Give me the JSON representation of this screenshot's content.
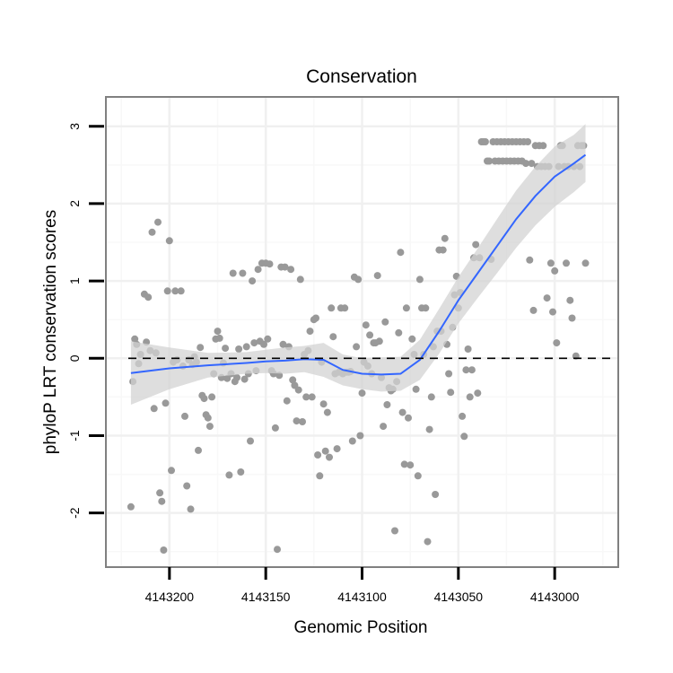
{
  "chart_data": {
    "type": "scatter",
    "title": "Conservation",
    "xlabel": "Genomic Position",
    "ylabel": "phyloP LRT conservation scores",
    "x_reversed": true,
    "xlim": [
      4143233,
      4142967
    ],
    "ylim": [
      -2.7,
      3.38
    ],
    "x_ticks": [
      4143200,
      4143150,
      4143100,
      4143050,
      4143000
    ],
    "x_tick_labels": [
      "4143200",
      "4143150",
      "4143100",
      "4143050",
      "4143000"
    ],
    "y_ticks": [
      -2,
      -1,
      0,
      1,
      2,
      3
    ],
    "y_tick_labels": [
      "-2",
      "-1",
      "0",
      "1",
      "2",
      "3"
    ],
    "reference_line": {
      "y": 0,
      "style": "dashed"
    },
    "colors": {
      "points": "#999999",
      "smooth_line": "#3366FF",
      "ribbon": "#d3d3d3",
      "panel_border": "#808080",
      "grid_major": "#f0f0f0",
      "grid_minor": "#f8f8f8",
      "ref_line": "#000000"
    },
    "points": [
      {
        "x": 4143220,
        "y": -1.92
      },
      {
        "x": 4143219,
        "y": -0.3
      },
      {
        "x": 4143218,
        "y": 0.25
      },
      {
        "x": 4143217,
        "y": 0.18
      },
      {
        "x": 4143216,
        "y": -0.07
      },
      {
        "x": 4143215,
        "y": 0.05
      },
      {
        "x": 4143213,
        "y": 0.83
      },
      {
        "x": 4143212,
        "y": 0.21
      },
      {
        "x": 4143211,
        "y": 0.79
      },
      {
        "x": 4143210,
        "y": 0.1
      },
      {
        "x": 4143209,
        "y": 1.63
      },
      {
        "x": 4143208,
        "y": -0.65
      },
      {
        "x": 4143207,
        "y": 0.07
      },
      {
        "x": 4143206,
        "y": 1.76
      },
      {
        "x": 4143205,
        "y": -1.74
      },
      {
        "x": 4143204,
        "y": -1.85
      },
      {
        "x": 4143203,
        "y": -2.48
      },
      {
        "x": 4143202,
        "y": -0.58
      },
      {
        "x": 4143201,
        "y": 0.87
      },
      {
        "x": 4143200,
        "y": 1.52
      },
      {
        "x": 4143199,
        "y": -1.45
      },
      {
        "x": 4143198,
        "y": -0.05
      },
      {
        "x": 4143197,
        "y": 0.87
      },
      {
        "x": 4143196,
        "y": -0.02
      },
      {
        "x": 4143194,
        "y": 0.87
      },
      {
        "x": 4143193,
        "y": -0.1
      },
      {
        "x": 4143192,
        "y": -0.75
      },
      {
        "x": 4143191,
        "y": -1.65
      },
      {
        "x": 4143190,
        "y": -0.02
      },
      {
        "x": 4143189,
        "y": -1.95
      },
      {
        "x": 4143188,
        "y": -0.08
      },
      {
        "x": 4143187,
        "y": 0.02
      },
      {
        "x": 4143186,
        "y": -0.05
      },
      {
        "x": 4143185,
        "y": -1.19
      },
      {
        "x": 4143184,
        "y": 0.14
      },
      {
        "x": 4143183,
        "y": -0.48
      },
      {
        "x": 4143182,
        "y": -0.52
      },
      {
        "x": 4143181,
        "y": -0.73
      },
      {
        "x": 4143180,
        "y": -0.77
      },
      {
        "x": 4143179,
        "y": -0.88
      },
      {
        "x": 4143178,
        "y": -0.5
      },
      {
        "x": 4143177,
        "y": -0.2
      },
      {
        "x": 4143176,
        "y": 0.25
      },
      {
        "x": 4143175,
        "y": 0.35
      },
      {
        "x": 4143174,
        "y": 0.26
      },
      {
        "x": 4143173,
        "y": -0.25
      },
      {
        "x": 4143172,
        "y": -0.06
      },
      {
        "x": 4143171,
        "y": 0.13
      },
      {
        "x": 4143170,
        "y": -0.26
      },
      {
        "x": 4143169,
        "y": -1.51
      },
      {
        "x": 4143168,
        "y": -0.2
      },
      {
        "x": 4143167,
        "y": 1.1
      },
      {
        "x": 4143166,
        "y": -0.3
      },
      {
        "x": 4143165,
        "y": -0.25
      },
      {
        "x": 4143164,
        "y": 0.12
      },
      {
        "x": 4143163,
        "y": -1.47
      },
      {
        "x": 4143162,
        "y": 1.1
      },
      {
        "x": 4143161,
        "y": -0.27
      },
      {
        "x": 4143160,
        "y": 0.15
      },
      {
        "x": 4143159,
        "y": -0.2
      },
      {
        "x": 4143158,
        "y": -1.07
      },
      {
        "x": 4143157,
        "y": 1.0
      },
      {
        "x": 4143156,
        "y": 0.2
      },
      {
        "x": 4143155,
        "y": -0.16
      },
      {
        "x": 4143154,
        "y": 1.15
      },
      {
        "x": 4143153,
        "y": 0.22
      },
      {
        "x": 4143152,
        "y": 1.23
      },
      {
        "x": 4143151,
        "y": 0.18
      },
      {
        "x": 4143150,
        "y": 1.23
      },
      {
        "x": 4143149,
        "y": 0.25
      },
      {
        "x": 4143148,
        "y": 1.22
      },
      {
        "x": 4143147,
        "y": -0.16
      },
      {
        "x": 4143146,
        "y": -0.2
      },
      {
        "x": 4143145,
        "y": -0.9
      },
      {
        "x": 4143144,
        "y": -2.47
      },
      {
        "x": 4143143,
        "y": -0.22
      },
      {
        "x": 4143142,
        "y": 1.18
      },
      {
        "x": 4143141,
        "y": 0.18
      },
      {
        "x": 4143140,
        "y": 1.18
      },
      {
        "x": 4143139,
        "y": -0.55
      },
      {
        "x": 4143138,
        "y": 0.15
      },
      {
        "x": 4143137,
        "y": 1.15
      },
      {
        "x": 4143136,
        "y": -0.28
      },
      {
        "x": 4143135,
        "y": -0.35
      },
      {
        "x": 4143134,
        "y": -0.81
      },
      {
        "x": 4143133,
        "y": -0.41
      },
      {
        "x": 4143132,
        "y": 1.02
      },
      {
        "x": 4143131,
        "y": -0.82
      },
      {
        "x": 4143130,
        "y": 0.05
      },
      {
        "x": 4143129,
        "y": -0.5
      },
      {
        "x": 4143128,
        "y": 0.1
      },
      {
        "x": 4143127,
        "y": 0.35
      },
      {
        "x": 4143126,
        "y": -0.5
      },
      {
        "x": 4143125,
        "y": 0.5
      },
      {
        "x": 4143124,
        "y": 0.52
      },
      {
        "x": 4143123,
        "y": -1.25
      },
      {
        "x": 4143122,
        "y": -1.52
      },
      {
        "x": 4143121,
        "y": -0.05
      },
      {
        "x": 4143120,
        "y": -0.59
      },
      {
        "x": 4143119,
        "y": -1.2
      },
      {
        "x": 4143118,
        "y": -0.7
      },
      {
        "x": 4143117,
        "y": -1.28
      },
      {
        "x": 4143116,
        "y": 0.65
      },
      {
        "x": 4143115,
        "y": 0.28
      },
      {
        "x": 4143114,
        "y": -0.2
      },
      {
        "x": 4143113,
        "y": -1.17
      },
      {
        "x": 4143112,
        "y": -0.18
      },
      {
        "x": 4143111,
        "y": 0.65
      },
      {
        "x": 4143110,
        "y": -0.2
      },
      {
        "x": 4143109,
        "y": 0.65
      },
      {
        "x": 4143108,
        "y": -0.18
      },
      {
        "x": 4143107,
        "y": -0.18
      },
      {
        "x": 4143106,
        "y": -0.17
      },
      {
        "x": 4143105,
        "y": -1.07
      },
      {
        "x": 4143104,
        "y": 1.05
      },
      {
        "x": 4143103,
        "y": 0.15
      },
      {
        "x": 4143102,
        "y": 1.02
      },
      {
        "x": 4143101,
        "y": -1.0
      },
      {
        "x": 4143100,
        "y": -0.45
      },
      {
        "x": 4143099,
        "y": -0.05
      },
      {
        "x": 4143098,
        "y": 0.43
      },
      {
        "x": 4143097,
        "y": -0.1
      },
      {
        "x": 4143096,
        "y": 0.3
      },
      {
        "x": 4143095,
        "y": -0.2
      },
      {
        "x": 4143094,
        "y": 0.2
      },
      {
        "x": 4143093,
        "y": 0.2
      },
      {
        "x": 4143092,
        "y": 1.07
      },
      {
        "x": 4143091,
        "y": 0.22
      },
      {
        "x": 4143090,
        "y": -0.25
      },
      {
        "x": 4143089,
        "y": -0.88
      },
      {
        "x": 4143088,
        "y": 0.47
      },
      {
        "x": 4143087,
        "y": -0.6
      },
      {
        "x": 4143086,
        "y": -0.38
      },
      {
        "x": 4143085,
        "y": -0.42
      },
      {
        "x": 4143084,
        "y": -0.4
      },
      {
        "x": 4143083,
        "y": -2.23
      },
      {
        "x": 4143082,
        "y": -0.3
      },
      {
        "x": 4143081,
        "y": 0.33
      },
      {
        "x": 4143080,
        "y": 1.37
      },
      {
        "x": 4143079,
        "y": -0.7
      },
      {
        "x": 4143078,
        "y": -1.37
      },
      {
        "x": 4143077,
        "y": 0.65
      },
      {
        "x": 4143076,
        "y": -0.77
      },
      {
        "x": 4143075,
        "y": -1.38
      },
      {
        "x": 4143074,
        "y": 0.25
      },
      {
        "x": 4143073,
        "y": 0.05
      },
      {
        "x": 4143072,
        "y": -0.4
      },
      {
        "x": 4143071,
        "y": -1.52
      },
      {
        "x": 4143070,
        "y": 1.02
      },
      {
        "x": 4143069,
        "y": 0.65
      },
      {
        "x": 4143068,
        "y": 0.05
      },
      {
        "x": 4143067,
        "y": 0.65
      },
      {
        "x": 4143066,
        "y": -2.37
      },
      {
        "x": 4143065,
        "y": -0.92
      },
      {
        "x": 4143064,
        "y": -0.5
      },
      {
        "x": 4143063,
        "y": 0.15
      },
      {
        "x": 4143062,
        "y": -1.76
      },
      {
        "x": 4143061,
        "y": 0.35
      },
      {
        "x": 4143060,
        "y": 1.4
      },
      {
        "x": 4143059,
        "y": 0.35
      },
      {
        "x": 4143058,
        "y": 1.4
      },
      {
        "x": 4143057,
        "y": 1.55
      },
      {
        "x": 4143056,
        "y": 0.18
      },
      {
        "x": 4143055,
        "y": -0.2
      },
      {
        "x": 4143054,
        "y": -0.44
      },
      {
        "x": 4143053,
        "y": 0.4
      },
      {
        "x": 4143052,
        "y": 0.82
      },
      {
        "x": 4143051,
        "y": 1.06
      },
      {
        "x": 4143050,
        "y": 0.65
      },
      {
        "x": 4143049,
        "y": 0.85
      },
      {
        "x": 4143048,
        "y": -0.75
      },
      {
        "x": 4143047,
        "y": -1.01
      },
      {
        "x": 4143046,
        "y": -0.15
      },
      {
        "x": 4143045,
        "y": 0.12
      },
      {
        "x": 4143044,
        "y": -0.5
      },
      {
        "x": 4143043,
        "y": -0.15
      },
      {
        "x": 4143042,
        "y": 1.3
      },
      {
        "x": 4143041,
        "y": 1.47
      },
      {
        "x": 4143040,
        "y": -0.45
      },
      {
        "x": 4143039,
        "y": 1.3
      },
      {
        "x": 4143038,
        "y": 2.8
      },
      {
        "x": 4143037,
        "y": 2.8
      },
      {
        "x": 4143036,
        "y": 2.8
      },
      {
        "x": 4143035,
        "y": 2.55
      },
      {
        "x": 4143034,
        "y": 2.55
      },
      {
        "x": 4143033,
        "y": 1.28
      },
      {
        "x": 4143032,
        "y": 2.8
      },
      {
        "x": 4143031,
        "y": 2.55
      },
      {
        "x": 4143030,
        "y": 2.8
      },
      {
        "x": 4143029,
        "y": 2.55
      },
      {
        "x": 4143028,
        "y": 2.8
      },
      {
        "x": 4143027,
        "y": 2.55
      },
      {
        "x": 4143026,
        "y": 2.8
      },
      {
        "x": 4143025,
        "y": 2.55
      },
      {
        "x": 4143024,
        "y": 2.8
      },
      {
        "x": 4143023,
        "y": 2.55
      },
      {
        "x": 4143022,
        "y": 2.8
      },
      {
        "x": 4143021,
        "y": 2.55
      },
      {
        "x": 4143020,
        "y": 2.8
      },
      {
        "x": 4143019,
        "y": 2.55
      },
      {
        "x": 4143018,
        "y": 2.8
      },
      {
        "x": 4143017,
        "y": 2.55
      },
      {
        "x": 4143016,
        "y": 2.8
      },
      {
        "x": 4143015,
        "y": 2.52
      },
      {
        "x": 4143014,
        "y": 2.8
      },
      {
        "x": 4143013,
        "y": 1.27
      },
      {
        "x": 4143012,
        "y": 2.52
      },
      {
        "x": 4143011,
        "y": 0.62
      },
      {
        "x": 4143010,
        "y": 2.75
      },
      {
        "x": 4143009,
        "y": 2.48
      },
      {
        "x": 4143008,
        "y": 2.75
      },
      {
        "x": 4143007,
        "y": 2.48
      },
      {
        "x": 4143006,
        "y": 2.75
      },
      {
        "x": 4143005,
        "y": 2.48
      },
      {
        "x": 4143004,
        "y": 0.78
      },
      {
        "x": 4143003,
        "y": 2.48
      },
      {
        "x": 4143002,
        "y": 1.23
      },
      {
        "x": 4143001,
        "y": 0.6
      },
      {
        "x": 4143000,
        "y": 1.13
      },
      {
        "x": 4142999,
        "y": 0.2
      },
      {
        "x": 4142998,
        "y": 2.48
      },
      {
        "x": 4142997,
        "y": 2.75
      },
      {
        "x": 4142996,
        "y": 2.75
      },
      {
        "x": 4142995,
        "y": 2.48
      },
      {
        "x": 4142994,
        "y": 1.23
      },
      {
        "x": 4142993,
        "y": 2.48
      },
      {
        "x": 4142992,
        "y": 0.75
      },
      {
        "x": 4142991,
        "y": 0.52
      },
      {
        "x": 4142990,
        "y": 2.48
      },
      {
        "x": 4142989,
        "y": 0.03
      },
      {
        "x": 4142988,
        "y": 2.75
      },
      {
        "x": 4142987,
        "y": 2.48
      },
      {
        "x": 4142986,
        "y": 2.75
      },
      {
        "x": 4142985,
        "y": 2.75
      },
      {
        "x": 4142984,
        "y": 1.23
      }
    ],
    "smooth": {
      "x": [
        4143220,
        4143200,
        4143180,
        4143160,
        4143150,
        4143140,
        4143130,
        4143120,
        4143110,
        4143100,
        4143090,
        4143080,
        4143070,
        4143060,
        4143050,
        4143040,
        4143030,
        4143020,
        4143010,
        4143000,
        4142990,
        4142984
      ],
      "y": [
        -0.19,
        -0.13,
        -0.09,
        -0.06,
        -0.04,
        -0.03,
        -0.01,
        -0.02,
        -0.15,
        -0.2,
        -0.21,
        -0.2,
        -0.02,
        0.35,
        0.75,
        1.1,
        1.45,
        1.8,
        2.1,
        2.35,
        2.52,
        2.63
      ],
      "lower": [
        -0.6,
        -0.4,
        -0.25,
        -0.2,
        -0.19,
        -0.2,
        -0.18,
        -0.24,
        -0.35,
        -0.4,
        -0.43,
        -0.42,
        -0.28,
        0.06,
        0.45,
        0.78,
        1.1,
        1.43,
        1.72,
        1.96,
        2.15,
        2.28
      ],
      "upper": [
        0.22,
        0.14,
        0.07,
        0.08,
        0.11,
        0.14,
        0.16,
        0.2,
        0.05,
        0.0,
        0.01,
        0.02,
        0.24,
        0.64,
        1.05,
        1.42,
        1.8,
        2.17,
        2.48,
        2.74,
        2.89,
        3.03
      ]
    }
  }
}
